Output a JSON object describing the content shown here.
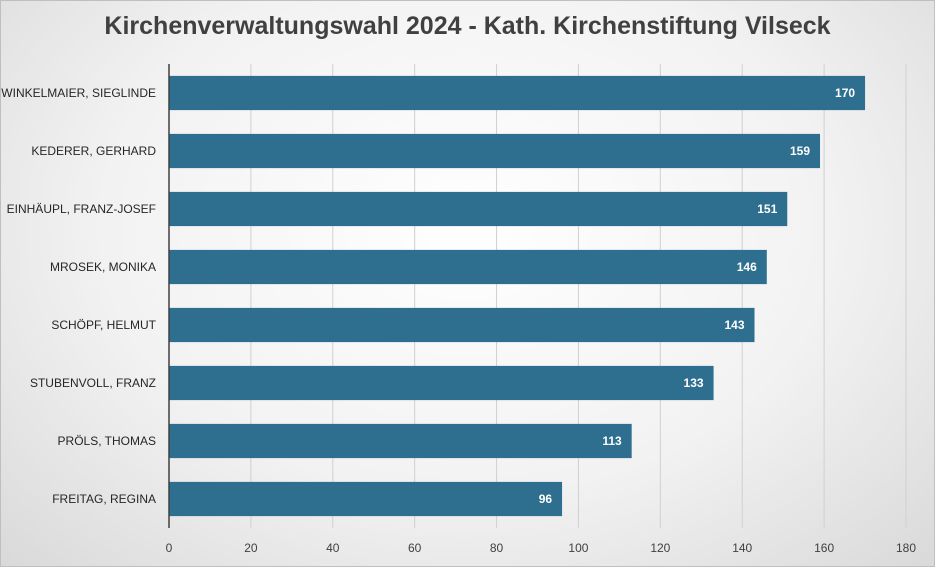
{
  "chart_data": {
    "type": "bar",
    "orientation": "horizontal",
    "title": "Kirchenverwaltungswahl 2024 - Kath. Kirchenstiftung Vilseck",
    "categories": [
      "WINKELMAIER, SIEGLINDE",
      "KEDERER, GERHARD",
      "EINHÄUPL, FRANZ-JOSEF",
      "MROSEK, MONIKA",
      "SCHÖPF, HELMUT",
      "STUBENVOLL, FRANZ",
      "PRÖLS, THOMAS",
      "FREITAG, REGINA"
    ],
    "values": [
      170,
      159,
      151,
      146,
      143,
      133,
      113,
      96
    ],
    "xlim": [
      0,
      180
    ],
    "xticks": [
      0,
      20,
      40,
      60,
      80,
      100,
      120,
      140,
      160,
      180
    ],
    "grid": true,
    "legend": "none",
    "bar_color": "#2e6e8e",
    "data_labels": true
  }
}
